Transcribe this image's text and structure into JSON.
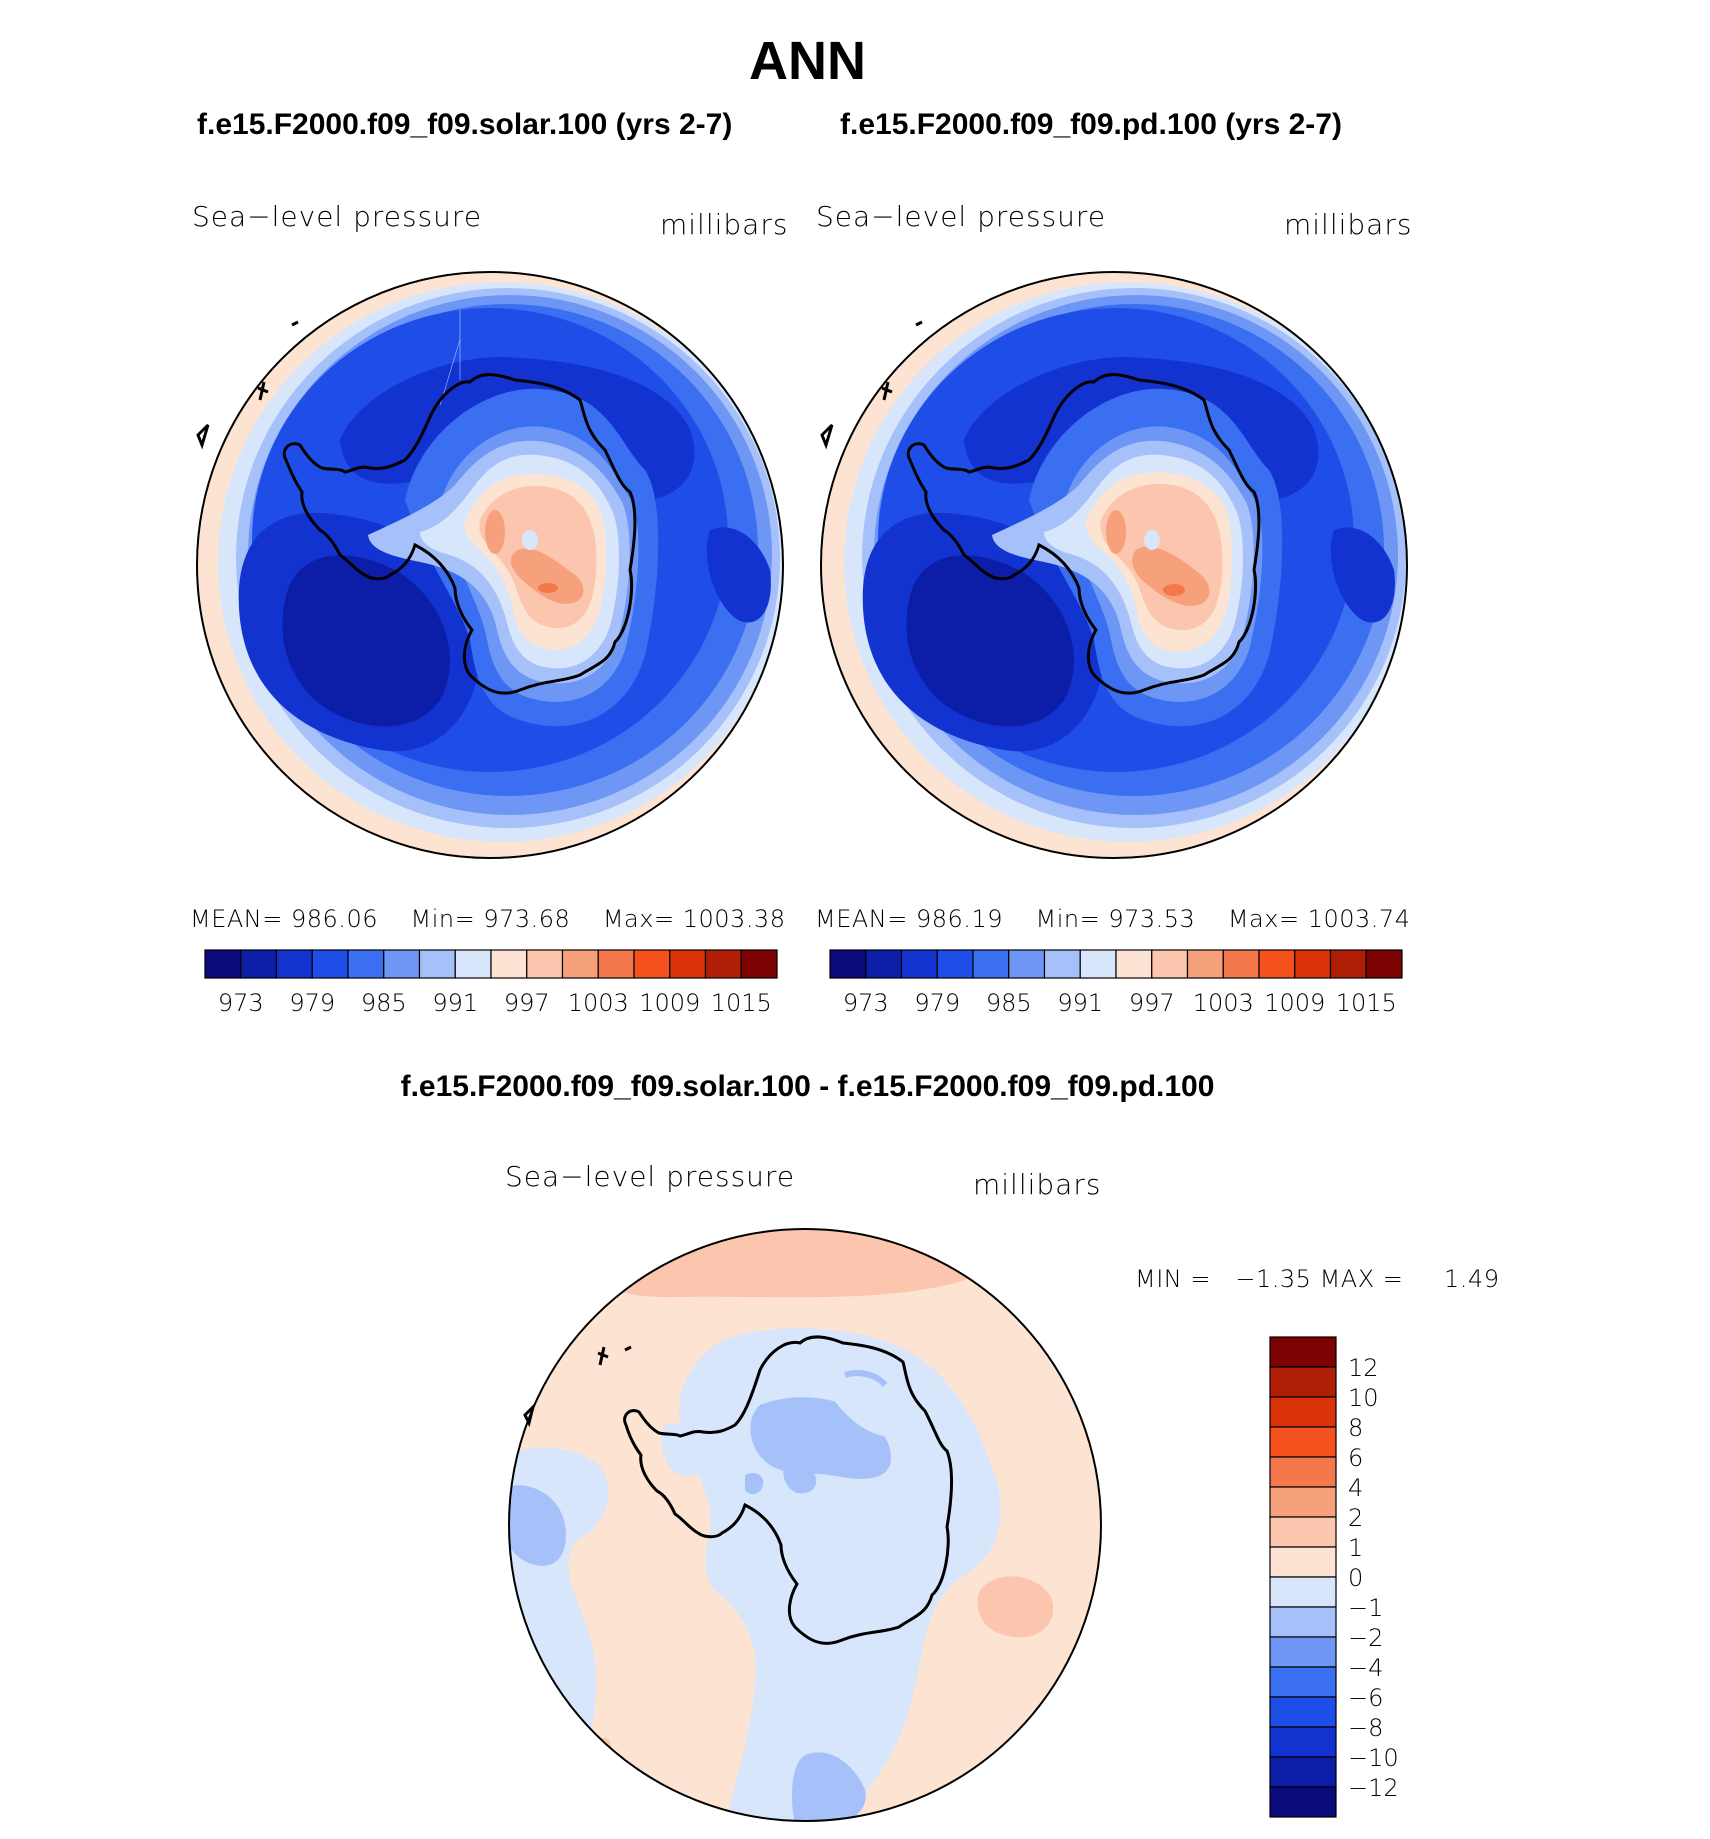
{
  "page": {
    "title": "ANN"
  },
  "panels": [
    {
      "subtitle": "f.e15.F2000.f09_f09.solar.100 (yrs 2-7)",
      "variable": "Sea−level pressure",
      "units": "millibars",
      "stats": {
        "mean_label": "MEAN=",
        "mean": "986.06",
        "min_label": "Min=",
        "min": "973.68",
        "max_label": "Max=",
        "max": "1003.38"
      }
    },
    {
      "subtitle": "f.e15.F2000.f09_f09.pd.100 (yrs 2-7)",
      "variable": "Sea−level pressure",
      "units": "millibars",
      "stats": {
        "mean_label": "MEAN=",
        "mean": "986.19",
        "min_label": "Min=",
        "min": "973.53",
        "max_label": "Max=",
        "max": "1003.74"
      }
    }
  ],
  "diff": {
    "title": "f.e15.F2000.f09_f09.solar.100 - f.e15.F2000.f09_f09.pd.100",
    "variable": "Sea−level pressure",
    "units": "millibars",
    "minmax": {
      "min_label": "MIN =",
      "min": "−1.35",
      "max_label": "MAX =",
      "max": "1.49"
    }
  },
  "chart_data": [
    {
      "type": "heatmap",
      "projection": "south-polar-stereographic",
      "title": "f.e15.F2000.f09_f09.solar.100 (yrs 2-7)",
      "variable": "Sea-level pressure",
      "units": "millibars",
      "mean": 986.06,
      "min": 973.68,
      "max": 1003.38,
      "colorbar_labels": [
        "973",
        "979",
        "985",
        "991",
        "997",
        "1003",
        "1009",
        "1015"
      ],
      "colorbar_colors": [
        "#0a0a7a",
        "#0c1ea8",
        "#1233d0",
        "#1f4de8",
        "#3b6ff2",
        "#6e96f5",
        "#a6c0fa",
        "#d7e6fb",
        "#fde4d2",
        "#fbc6ad",
        "#f6a07c",
        "#f4784b",
        "#f4511e",
        "#dc3209",
        "#b01e05",
        "#7d0303"
      ]
    },
    {
      "type": "heatmap",
      "projection": "south-polar-stereographic",
      "title": "f.e15.F2000.f09_f09.pd.100 (yrs 2-7)",
      "variable": "Sea-level pressure",
      "units": "millibars",
      "mean": 986.19,
      "min": 973.53,
      "max": 1003.74,
      "colorbar_labels": [
        "973",
        "979",
        "985",
        "991",
        "997",
        "1003",
        "1009",
        "1015"
      ],
      "colorbar_colors": [
        "#0a0a7a",
        "#0c1ea8",
        "#1233d0",
        "#1f4de8",
        "#3b6ff2",
        "#6e96f5",
        "#a6c0fa",
        "#d7e6fb",
        "#fde4d2",
        "#fbc6ad",
        "#f6a07c",
        "#f4784b",
        "#f4511e",
        "#dc3209",
        "#b01e05",
        "#7d0303"
      ]
    },
    {
      "type": "heatmap",
      "projection": "south-polar-stereographic",
      "title": "f.e15.F2000.f09_f09.solar.100 - f.e15.F2000.f09_f09.pd.100",
      "variable": "Sea-level pressure",
      "units": "millibars",
      "min": -1.35,
      "max": 1.49,
      "colorbar_labels": [
        "12",
        "10",
        "8",
        "6",
        "4",
        "2",
        "1",
        "0",
        "−1",
        "−2",
        "−4",
        "−6",
        "−8",
        "−10",
        "−12"
      ],
      "colorbar_colors": [
        "#7d0303",
        "#b01e05",
        "#dc3209",
        "#f4511e",
        "#f4784b",
        "#f6a07c",
        "#fbc6ad",
        "#fde4d2",
        "#d7e6fb",
        "#a6c0fa",
        "#6e96f5",
        "#3b6ff2",
        "#1f4de8",
        "#1233d0",
        "#0c1ea8",
        "#0a0a7a"
      ]
    }
  ]
}
